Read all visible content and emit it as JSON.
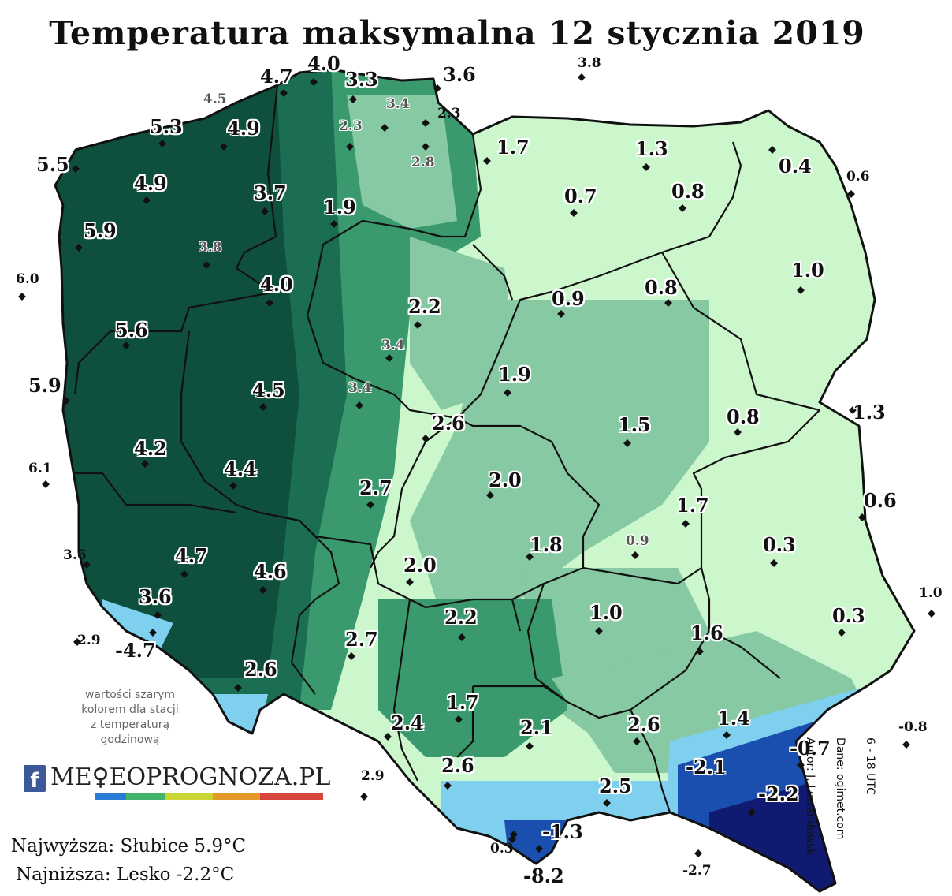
{
  "title": "Temperatura maksymalna 12 stycznia 2019",
  "note": {
    "line1": "wartości szarym",
    "line2": "kolorem dla stacji",
    "line3": "z temperaturą",
    "line4": "godzinową"
  },
  "logo": {
    "icon": "f",
    "text": "ME♀EOPROGNOZA.PL",
    "icon_name": "facebook-icon"
  },
  "summary": {
    "max": "Najwyższa: Słubice 5.9°C",
    "min": "Najniższa: Lesko -2.2°C"
  },
  "credits": {
    "author": "Autor: J. Lewandowski",
    "source": "Dane: ogimet.com",
    "period": "6 - 18 UTC"
  },
  "colors": {
    "above_4": "#0f4f3e",
    "3_to_4": "#1b6e52",
    "2_to_3": "#3a9a6e",
    "1_to_2": "#86c9a3",
    "0_to_1": "#ccf7cc",
    "below_0": "#7fd0ee",
    "cold": "#1a4fb0",
    "coldest": "#101a70",
    "border": "#111111"
  },
  "stations": [
    {
      "v": "4.7",
      "s": "big"
    },
    {
      "v": "4.0",
      "s": "big"
    },
    {
      "v": "3.3",
      "s": "big"
    },
    {
      "v": "3.6",
      "s": "big"
    },
    {
      "v": "3.8",
      "s": "small"
    },
    {
      "v": "4.5",
      "s": "grey"
    },
    {
      "v": "3.4",
      "s": "grey"
    },
    {
      "v": "2.3",
      "s": "small"
    },
    {
      "v": "5.3",
      "s": "big"
    },
    {
      "v": "4.9",
      "s": "big"
    },
    {
      "v": "2.3",
      "s": "grey"
    },
    {
      "v": "1.7",
      "s": "big"
    },
    {
      "v": "1.3",
      "s": "big"
    },
    {
      "v": "5.5",
      "s": "big"
    },
    {
      "v": "2.8",
      "s": "grey"
    },
    {
      "v": "0.4",
      "s": "big"
    },
    {
      "v": "4.9",
      "s": "big"
    },
    {
      "v": "0.6",
      "s": "small"
    },
    {
      "v": "3.7",
      "s": "big"
    },
    {
      "v": "0.7",
      "s": "big"
    },
    {
      "v": "0.8",
      "s": "big"
    },
    {
      "v": "1.9",
      "s": "big"
    },
    {
      "v": "5.9",
      "s": "big"
    },
    {
      "v": "3.8",
      "s": "grey"
    },
    {
      "v": "1.0",
      "s": "big"
    },
    {
      "v": "6.0",
      "s": "small"
    },
    {
      "v": "4.0",
      "s": "big"
    },
    {
      "v": "0.9",
      "s": "big"
    },
    {
      "v": "0.8",
      "s": "big"
    },
    {
      "v": "2.2",
      "s": "big"
    },
    {
      "v": "5.6",
      "s": "big"
    },
    {
      "v": "3.4",
      "s": "grey"
    },
    {
      "v": "1.9",
      "s": "big"
    },
    {
      "v": "5.9",
      "s": "big"
    },
    {
      "v": "4.5",
      "s": "big"
    },
    {
      "v": "3.4",
      "s": "grey"
    },
    {
      "v": "1.3",
      "s": "big"
    },
    {
      "v": "2.6",
      "s": "big"
    },
    {
      "v": "1.5",
      "s": "big"
    },
    {
      "v": "0.8",
      "s": "big"
    },
    {
      "v": "4.2",
      "s": "big"
    },
    {
      "v": "4.4",
      "s": "big"
    },
    {
      "v": "2.0",
      "s": "big"
    },
    {
      "v": "6.1",
      "s": "small"
    },
    {
      "v": "2.7",
      "s": "big"
    },
    {
      "v": "0.6",
      "s": "big"
    },
    {
      "v": "1.7",
      "s": "big"
    },
    {
      "v": "0.3",
      "s": "big"
    },
    {
      "v": "1.8",
      "s": "big"
    },
    {
      "v": "0.9",
      "s": "grey"
    },
    {
      "v": "3.6",
      "s": "small"
    },
    {
      "v": "4.7",
      "s": "big"
    },
    {
      "v": "4.6",
      "s": "big"
    },
    {
      "v": "2.0",
      "s": "big"
    },
    {
      "v": "3.6",
      "s": "big"
    },
    {
      "v": "2.2",
      "s": "big"
    },
    {
      "v": "1.0",
      "s": "big"
    },
    {
      "v": "1.0",
      "s": "small"
    },
    {
      "v": "0.3",
      "s": "big"
    },
    {
      "v": "2.9",
      "s": "small"
    },
    {
      "v": "-4.7",
      "s": "big"
    },
    {
      "v": "1.6",
      "s": "big"
    },
    {
      "v": "2.7",
      "s": "big"
    },
    {
      "v": "2.6",
      "s": "big"
    },
    {
      "v": "1.7",
      "s": "big"
    },
    {
      "v": "1.4",
      "s": "big"
    },
    {
      "v": "-0.8",
      "s": "small"
    },
    {
      "v": "2.4",
      "s": "big"
    },
    {
      "v": "2.1",
      "s": "big"
    },
    {
      "v": "2.6",
      "s": "big"
    },
    {
      "v": "-0.7",
      "s": "big"
    },
    {
      "v": "2.9",
      "s": "small"
    },
    {
      "v": "2.6",
      "s": "big"
    },
    {
      "v": "-2.1",
      "s": "big"
    },
    {
      "v": "2.5",
      "s": "big"
    },
    {
      "v": "-2.2",
      "s": "big"
    },
    {
      "v": "-1.3",
      "s": "big"
    },
    {
      "v": "0.3",
      "s": "small"
    },
    {
      "v": "-8.2",
      "s": "big"
    },
    {
      "v": "-2.7",
      "s": "small"
    }
  ]
}
